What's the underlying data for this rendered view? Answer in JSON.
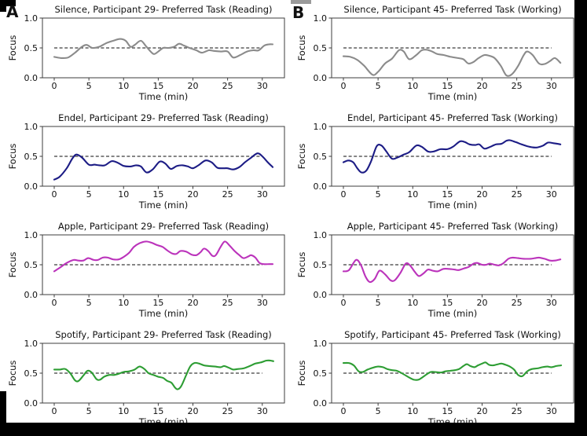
{
  "figure": {
    "panels": [
      {
        "label": "A"
      },
      {
        "label": "B"
      }
    ],
    "axis": {
      "xlabel": "Time (min)",
      "ylabel": "Focus",
      "xticks": [
        0,
        5,
        10,
        15,
        20,
        25,
        30
      ],
      "yticks": [
        0.0,
        0.5,
        1.0
      ],
      "ytick_labels": [
        "0.0",
        "0.5",
        "1.0"
      ],
      "xlim": [
        -1.7,
        33.2
      ],
      "ylim": [
        0,
        1
      ],
      "threshold": 0.5,
      "threshold_style": "dashed",
      "grid": false,
      "legend": "none"
    },
    "colors": {
      "silence": "#8b8b8b",
      "endel": "#1c1c85",
      "apple": "#bb33bb",
      "spotify": "#2d9d33",
      "spine": "#3c3c3c",
      "threshold_line": "#3c3c3c",
      "text": "#111111",
      "background": "#ffffff"
    }
  },
  "chart_data": [
    {
      "type": "line",
      "panel": "A",
      "condition": "silence",
      "title": "Silence, Participant 29- Preferred Task (Reading)",
      "color": "#8b8b8b",
      "x": [
        0,
        1,
        2,
        3,
        4,
        4.7,
        5.5,
        6.5,
        7.5,
        8.5,
        9.5,
        10.3,
        11,
        11.6,
        12.5,
        13.3,
        14.3,
        15,
        15.7,
        16.5,
        17.3,
        18,
        18.7,
        19.5,
        20.5,
        21.3,
        22.3,
        23,
        24,
        25,
        25.8,
        26.8,
        27.8,
        28.7,
        29.5,
        30.3,
        31,
        31.5
      ],
      "y": [
        0.35,
        0.33,
        0.34,
        0.42,
        0.52,
        0.55,
        0.5,
        0.52,
        0.58,
        0.62,
        0.65,
        0.62,
        0.52,
        0.55,
        0.62,
        0.52,
        0.4,
        0.44,
        0.5,
        0.5,
        0.52,
        0.57,
        0.54,
        0.5,
        0.46,
        0.42,
        0.46,
        0.45,
        0.44,
        0.44,
        0.34,
        0.38,
        0.44,
        0.46,
        0.46,
        0.54,
        0.56,
        0.56
      ]
    },
    {
      "type": "line",
      "panel": "B",
      "condition": "silence",
      "title": "Silence, Participant 45- Preferred Task (Working)",
      "color": "#8b8b8b",
      "x": [
        0,
        1,
        2,
        3,
        4.2,
        5,
        6,
        7,
        8,
        8.7,
        9.5,
        10.5,
        11.3,
        12,
        12.8,
        13.5,
        14.5,
        15.5,
        16.5,
        17.3,
        18,
        18.7,
        19.5,
        20.3,
        21,
        21.8,
        22.7,
        23.5,
        24.3,
        25.2,
        26,
        26.5,
        27.3,
        28.2,
        29,
        29.8,
        30.5,
        31.3
      ],
      "y": [
        0.36,
        0.35,
        0.3,
        0.2,
        0.05,
        0.1,
        0.24,
        0.32,
        0.46,
        0.44,
        0.31,
        0.38,
        0.46,
        0.47,
        0.44,
        0.4,
        0.38,
        0.35,
        0.33,
        0.31,
        0.24,
        0.26,
        0.33,
        0.38,
        0.37,
        0.33,
        0.2,
        0.04,
        0.06,
        0.2,
        0.38,
        0.44,
        0.38,
        0.24,
        0.23,
        0.28,
        0.33,
        0.25
      ]
    },
    {
      "type": "line",
      "panel": "A",
      "condition": "endel",
      "title": "Endel, Participant 29- Preferred Task (Reading)",
      "color": "#1c1c85",
      "x": [
        0,
        0.8,
        1.8,
        2.6,
        3.2,
        4,
        5,
        5.8,
        6.5,
        7.3,
        8.3,
        9.2,
        10,
        11,
        11.8,
        12.5,
        13.3,
        14.2,
        15.2,
        16,
        16.8,
        17.7,
        18.5,
        19.3,
        20,
        20.8,
        21.8,
        22.7,
        23.5,
        24.3,
        25,
        25.8,
        26.7,
        27.5,
        28.3,
        29.3,
        30,
        30.8,
        31.5
      ],
      "y": [
        0.11,
        0.16,
        0.3,
        0.46,
        0.53,
        0.48,
        0.36,
        0.36,
        0.35,
        0.35,
        0.42,
        0.39,
        0.34,
        0.33,
        0.35,
        0.33,
        0.23,
        0.28,
        0.41,
        0.38,
        0.29,
        0.34,
        0.35,
        0.33,
        0.3,
        0.35,
        0.43,
        0.4,
        0.31,
        0.3,
        0.3,
        0.28,
        0.32,
        0.4,
        0.47,
        0.55,
        0.5,
        0.4,
        0.32
      ]
    },
    {
      "type": "line",
      "panel": "B",
      "condition": "endel",
      "title": "Endel, Participant 45- Preferred Task (Working)",
      "color": "#1c1c85",
      "x": [
        0,
        0.7,
        1.4,
        2,
        2.6,
        3.3,
        4,
        4.8,
        5.5,
        6.2,
        7,
        7.8,
        8.7,
        9.5,
        10.5,
        11.3,
        12.2,
        13,
        14,
        15,
        15.8,
        16.8,
        17.5,
        18.2,
        19,
        19.6,
        20.3,
        21,
        22,
        22.8,
        23.5,
        24,
        24.8,
        25.7,
        26.5,
        27.3,
        28,
        28.8,
        29.5,
        30.3,
        31.3
      ],
      "y": [
        0.4,
        0.43,
        0.4,
        0.3,
        0.23,
        0.26,
        0.42,
        0.67,
        0.68,
        0.58,
        0.46,
        0.48,
        0.53,
        0.57,
        0.68,
        0.66,
        0.58,
        0.58,
        0.62,
        0.62,
        0.66,
        0.75,
        0.74,
        0.7,
        0.69,
        0.7,
        0.63,
        0.65,
        0.7,
        0.71,
        0.76,
        0.77,
        0.74,
        0.7,
        0.67,
        0.65,
        0.65,
        0.68,
        0.73,
        0.72,
        0.7
      ]
    },
    {
      "type": "line",
      "panel": "A",
      "condition": "apple",
      "title": "Apple, Participant 29- Preferred Task (Reading)",
      "color": "#bb33bb",
      "x": [
        0,
        0.8,
        1.8,
        2.8,
        3.5,
        4.2,
        4.9,
        5.7,
        6.3,
        7,
        7.7,
        8.5,
        9.3,
        10,
        10.8,
        11.5,
        12.3,
        13.2,
        14,
        14.8,
        15.6,
        16.3,
        17,
        17.6,
        18.2,
        19,
        19.8,
        20.5,
        21.1,
        21.6,
        22.2,
        22.8,
        23.3,
        24,
        24.6,
        25.3,
        26,
        26.7,
        27.3,
        28,
        28.4,
        29,
        29.6,
        30.2,
        31,
        31.5
      ],
      "y": [
        0.39,
        0.45,
        0.53,
        0.58,
        0.57,
        0.57,
        0.61,
        0.58,
        0.58,
        0.62,
        0.62,
        0.59,
        0.59,
        0.63,
        0.7,
        0.8,
        0.86,
        0.89,
        0.87,
        0.83,
        0.8,
        0.74,
        0.69,
        0.68,
        0.73,
        0.72,
        0.67,
        0.66,
        0.71,
        0.77,
        0.73,
        0.65,
        0.66,
        0.8,
        0.89,
        0.82,
        0.73,
        0.66,
        0.61,
        0.64,
        0.66,
        0.62,
        0.53,
        0.51,
        0.51,
        0.51
      ]
    },
    {
      "type": "line",
      "panel": "B",
      "condition": "apple",
      "title": "Apple, Participant 45- Preferred Task (Working)",
      "color": "#bb33bb",
      "x": [
        0,
        0.8,
        1.8,
        2.5,
        3.2,
        3.8,
        4.5,
        5.2,
        6,
        6.8,
        7.4,
        8.2,
        9,
        9.6,
        10.3,
        10.9,
        11.6,
        12.2,
        12.9,
        13.6,
        14.4,
        15.2,
        16,
        16.6,
        17.4,
        18,
        18.8,
        19.3,
        20,
        20.6,
        21.1,
        21.8,
        22.4,
        23,
        23.8,
        24.4,
        25.2,
        26,
        27,
        27.6,
        28.2,
        29,
        29.8,
        30.5,
        31.3
      ],
      "y": [
        0.39,
        0.41,
        0.58,
        0.5,
        0.3,
        0.21,
        0.26,
        0.4,
        0.34,
        0.24,
        0.24,
        0.36,
        0.52,
        0.49,
        0.38,
        0.31,
        0.36,
        0.42,
        0.4,
        0.39,
        0.43,
        0.43,
        0.42,
        0.41,
        0.44,
        0.46,
        0.52,
        0.53,
        0.5,
        0.5,
        0.52,
        0.5,
        0.49,
        0.52,
        0.6,
        0.62,
        0.61,
        0.6,
        0.6,
        0.61,
        0.62,
        0.6,
        0.57,
        0.57,
        0.59
      ]
    },
    {
      "type": "line",
      "panel": "A",
      "condition": "spotify",
      "title": "Spotify, Participant 29- Preferred Task (Reading)",
      "color": "#2d9d33",
      "x": [
        0,
        0.8,
        1.6,
        2.3,
        3,
        3.5,
        4.2,
        4.8,
        5.4,
        6.1,
        6.6,
        7.2,
        7.9,
        8.6,
        9.3,
        10,
        10.8,
        11.6,
        12.3,
        13,
        13.6,
        14.3,
        15,
        15.7,
        16.3,
        16.9,
        17.4,
        17.8,
        18.3,
        19,
        19.6,
        20.2,
        20.9,
        21.6,
        22.3,
        23.2,
        24,
        24.5,
        25.2,
        25.8,
        26.5,
        27.3,
        28.2,
        29,
        29.8,
        30.6,
        31.2,
        31.6
      ],
      "y": [
        0.56,
        0.56,
        0.57,
        0.5,
        0.38,
        0.37,
        0.46,
        0.54,
        0.51,
        0.4,
        0.39,
        0.44,
        0.47,
        0.47,
        0.49,
        0.52,
        0.53,
        0.56,
        0.61,
        0.57,
        0.5,
        0.47,
        0.44,
        0.42,
        0.37,
        0.34,
        0.26,
        0.23,
        0.28,
        0.46,
        0.61,
        0.67,
        0.66,
        0.63,
        0.62,
        0.61,
        0.6,
        0.62,
        0.59,
        0.56,
        0.57,
        0.58,
        0.62,
        0.66,
        0.68,
        0.71,
        0.71,
        0.7
      ]
    },
    {
      "type": "line",
      "panel": "B",
      "condition": "spotify",
      "title": "Spotify, Participant 45- Preferred Task (Working)",
      "color": "#2d9d33",
      "x": [
        0,
        0.8,
        1.5,
        2.2,
        2.8,
        3.5,
        4.2,
        5,
        5.7,
        6.3,
        7,
        7.7,
        8.4,
        9,
        9.6,
        10.2,
        10.8,
        11.4,
        12,
        12.6,
        13.2,
        14,
        14.7,
        15.4,
        16.1,
        16.7,
        17.3,
        17.8,
        18.3,
        18.9,
        19.4,
        20,
        20.5,
        21,
        21.6,
        22.3,
        22.8,
        23.4,
        24,
        24.6,
        25.2,
        25.8,
        26.5,
        27.2,
        28,
        28.7,
        29.4,
        30,
        30.7,
        31.4
      ],
      "y": [
        0.67,
        0.67,
        0.63,
        0.53,
        0.52,
        0.56,
        0.59,
        0.61,
        0.6,
        0.57,
        0.55,
        0.54,
        0.5,
        0.46,
        0.42,
        0.39,
        0.39,
        0.43,
        0.48,
        0.52,
        0.52,
        0.51,
        0.53,
        0.54,
        0.55,
        0.57,
        0.62,
        0.65,
        0.62,
        0.6,
        0.63,
        0.66,
        0.68,
        0.64,
        0.63,
        0.65,
        0.66,
        0.64,
        0.61,
        0.56,
        0.47,
        0.45,
        0.53,
        0.57,
        0.58,
        0.6,
        0.61,
        0.6,
        0.62,
        0.63
      ]
    }
  ]
}
